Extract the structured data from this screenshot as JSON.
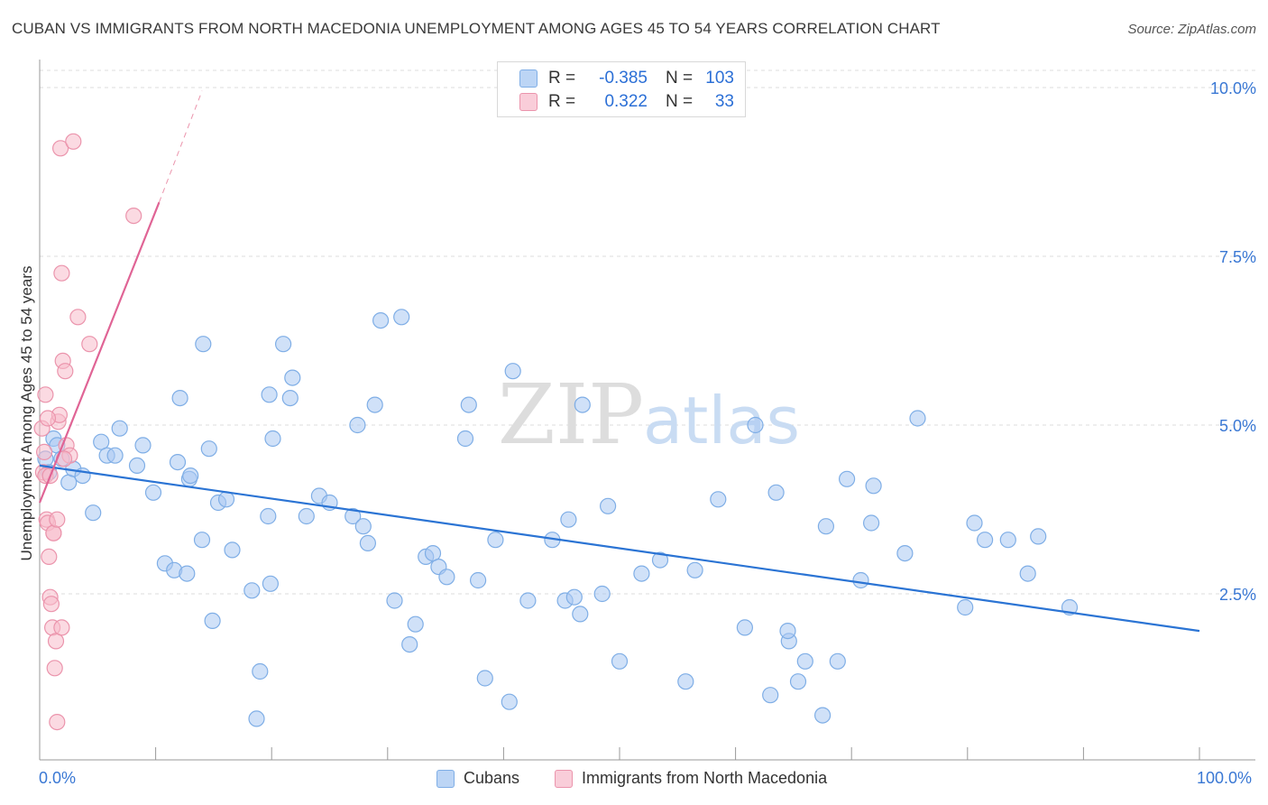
{
  "header": {
    "title": "CUBAN VS IMMIGRANTS FROM NORTH MACEDONIA UNEMPLOYMENT AMONG AGES 45 TO 54 YEARS CORRELATION CHART",
    "source": "Source: ZipAtlas.com"
  },
  "watermark": {
    "zip": "ZIP",
    "atlas": "atlas"
  },
  "stats_legend": {
    "rows": [
      {
        "r_label": "R =",
        "r_value": "-0.385",
        "n_label": "N =",
        "n_value": "103"
      },
      {
        "r_label": "R =",
        "r_value": "0.322",
        "n_label": "N =",
        "n_value": "33"
      }
    ]
  },
  "bottom_legend": {
    "items": [
      {
        "label": "Cubans"
      },
      {
        "label": "Immigrants from North Macedonia"
      }
    ]
  },
  "colors": {
    "blue_fill": "#a9c8f2",
    "blue_stroke": "#7faee6",
    "blue_line": "#2b74d4",
    "pink_fill": "#f7bccb",
    "pink_stroke": "#eb94ac",
    "pink_line": "#e06495",
    "tick_label": "#3a78d4",
    "grid": "#dcdcdc"
  },
  "chart_data": {
    "type": "scatter",
    "title": "CUBAN VS IMMIGRANTS FROM NORTH MACEDONIA UNEMPLOYMENT AMONG AGES 45 TO 54 YEARS CORRELATION CHART",
    "xlabel": "",
    "ylabel": "Unemployment Among Ages 45 to 54 years",
    "xlim": [
      0,
      100
    ],
    "ylim": [
      0,
      10.5
    ],
    "x_tick_labels": [
      "0.0%",
      "100.0%"
    ],
    "y_ticks": [
      2.5,
      5.0,
      7.5,
      10.0
    ],
    "y_tick_labels": [
      "2.5%",
      "5.0%",
      "7.5%",
      "10.0%"
    ],
    "grid": true,
    "legend_position": "bottom",
    "series": [
      {
        "name": "Cubans",
        "color": "#7faee6",
        "r": -0.385,
        "n": 103,
        "trend": {
          "x": [
            0,
            100
          ],
          "y": [
            4.4,
            1.95
          ]
        },
        "x": [
          0.5,
          0.8,
          1.2,
          1.5,
          1.9,
          2.5,
          2.9,
          3.7,
          4.6,
          5.3,
          5.8,
          6.5,
          6.9,
          8.4,
          8.9,
          9.8,
          10.8,
          11.6,
          11.9,
          12.1,
          12.7,
          12.9,
          13.0,
          14.0,
          14.1,
          14.6,
          14.9,
          15.4,
          16.1,
          16.6,
          18.3,
          18.7,
          19.0,
          19.7,
          19.8,
          19.9,
          20.1,
          21.0,
          21.6,
          21.8,
          23.0,
          24.1,
          25.0,
          27.0,
          27.4,
          27.9,
          28.3,
          28.9,
          29.4,
          30.6,
          31.2,
          31.9,
          32.4,
          33.3,
          33.9,
          34.4,
          35.1,
          36.7,
          37.0,
          37.8,
          38.4,
          39.3,
          40.5,
          40.8,
          42.1,
          44.2,
          45.3,
          46.1,
          45.6,
          46.6,
          46.8,
          48.5,
          49.0,
          50.0,
          51.9,
          53.5,
          55.7,
          56.5,
          58.5,
          60.8,
          61.7,
          63.0,
          63.5,
          64.6,
          64.5,
          65.4,
          66.0,
          67.5,
          67.8,
          68.8,
          69.6,
          70.8,
          71.7,
          71.9,
          74.6,
          75.7,
          79.8,
          80.6,
          81.5,
          83.5,
          85.2,
          86.1,
          88.8
        ],
        "y": [
          4.5,
          4.3,
          4.8,
          4.7,
          4.5,
          4.15,
          4.35,
          4.25,
          3.7,
          4.75,
          4.55,
          4.55,
          4.95,
          4.4,
          4.7,
          4.0,
          2.95,
          2.85,
          4.45,
          5.4,
          2.8,
          4.2,
          4.25,
          3.3,
          6.2,
          4.65,
          2.1,
          3.85,
          3.9,
          3.15,
          2.55,
          0.65,
          1.35,
          3.65,
          5.45,
          2.65,
          4.8,
          6.2,
          5.4,
          5.7,
          3.65,
          3.95,
          3.85,
          3.65,
          5.0,
          3.5,
          3.25,
          5.3,
          6.55,
          2.4,
          6.6,
          1.75,
          2.05,
          3.05,
          3.1,
          2.9,
          2.75,
          4.8,
          5.3,
          2.7,
          1.25,
          3.3,
          0.9,
          5.8,
          2.4,
          3.3,
          2.4,
          2.45,
          3.6,
          2.2,
          5.3,
          2.5,
          3.8,
          1.5,
          2.8,
          3.0,
          1.2,
          2.85,
          3.9,
          2.0,
          5.0,
          1.0,
          4.0,
          1.8,
          1.95,
          1.2,
          1.5,
          0.7,
          3.5,
          1.5,
          4.2,
          2.7,
          3.55,
          4.1,
          3.1,
          5.1,
          2.3,
          3.55,
          3.3,
          3.3,
          2.8,
          3.35,
          2.3
        ]
      },
      {
        "name": "Immigrants from North Macedonia",
        "color": "#eb94ac",
        "r": 0.322,
        "n": 33,
        "trend": {
          "x": [
            0,
            10.3
          ],
          "y": [
            3.85,
            8.3
          ]
        },
        "trend_dashed_extension": {
          "x": [
            10.3,
            14.0
          ],
          "y": [
            8.3,
            9.95
          ]
        },
        "x": [
          0.2,
          0.3,
          0.4,
          0.5,
          0.6,
          0.7,
          0.8,
          0.9,
          1.0,
          1.1,
          1.2,
          1.3,
          1.4,
          1.5,
          1.6,
          1.7,
          1.8,
          1.9,
          2.0,
          2.2,
          2.3,
          2.6,
          2.9,
          3.3,
          4.3,
          8.1,
          0.5,
          0.9,
          1.2,
          1.5,
          0.7,
          1.9,
          2.1
        ],
        "y": [
          4.95,
          4.3,
          4.6,
          5.45,
          3.6,
          3.55,
          3.05,
          2.45,
          2.35,
          2.0,
          3.4,
          1.4,
          1.8,
          0.6,
          5.05,
          5.15,
          9.1,
          7.25,
          5.95,
          5.8,
          4.7,
          4.55,
          9.2,
          6.6,
          6.2,
          8.1,
          4.25,
          4.25,
          3.4,
          3.6,
          5.1,
          2.0,
          4.5
        ]
      }
    ]
  }
}
